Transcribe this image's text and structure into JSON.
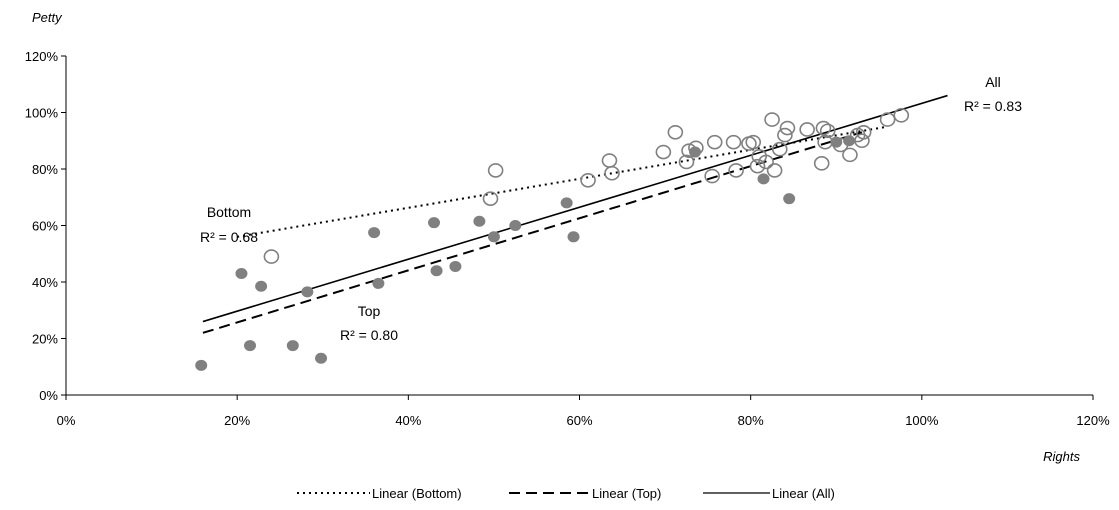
{
  "chart_data": {
    "type": "scatter",
    "xlabel": "Rights",
    "ylabel": "Petty",
    "xlim": [
      0,
      120
    ],
    "ylim": [
      0,
      120
    ],
    "xticks": [
      "0%",
      "20%",
      "40%",
      "60%",
      "80%",
      "100%",
      "120%"
    ],
    "yticks": [
      "0%",
      "20%",
      "40%",
      "60%",
      "80%",
      "100%",
      "120%"
    ],
    "grid": false,
    "legend_position": "bottom",
    "series": [
      {
        "name": "Bottom",
        "marker": "open-circle",
        "color": "#808080",
        "points": [
          [
            24,
            49
          ],
          [
            49.6,
            69.5
          ],
          [
            50.2,
            79.5
          ],
          [
            61,
            76
          ],
          [
            63.5,
            83
          ],
          [
            63.8,
            78.5
          ],
          [
            69.8,
            86
          ],
          [
            71.2,
            93
          ],
          [
            72.5,
            82.5
          ],
          [
            72.8,
            86.5
          ],
          [
            73.6,
            87.5
          ],
          [
            75.5,
            77.5
          ],
          [
            75.8,
            89.5
          ],
          [
            78,
            89.5
          ],
          [
            78.3,
            79.5
          ],
          [
            79.8,
            89
          ],
          [
            80.3,
            89.5
          ],
          [
            80.8,
            81
          ],
          [
            81,
            84.5
          ],
          [
            81.8,
            82.5
          ],
          [
            82.5,
            97.5
          ],
          [
            82.8,
            79.5
          ],
          [
            83.4,
            87
          ],
          [
            84,
            92
          ],
          [
            84.3,
            94.5
          ],
          [
            86.6,
            94
          ],
          [
            88.3,
            82
          ],
          [
            88.5,
            94.5
          ],
          [
            88.7,
            89.5
          ],
          [
            89,
            93.5
          ],
          [
            90.5,
            88.5
          ],
          [
            91.6,
            85
          ],
          [
            92.5,
            92
          ],
          [
            93,
            90
          ],
          [
            93.2,
            93
          ],
          [
            96,
            97.5
          ],
          [
            97.6,
            99
          ]
        ]
      },
      {
        "name": "Top",
        "marker": "filled-circle",
        "color": "#808080",
        "points": [
          [
            15.8,
            10.5
          ],
          [
            20.5,
            43
          ],
          [
            21.5,
            17.5
          ],
          [
            22.8,
            38.5
          ],
          [
            26.5,
            17.5
          ],
          [
            28.2,
            36.5
          ],
          [
            29.8,
            13
          ],
          [
            36,
            57.5
          ],
          [
            36.5,
            39.5
          ],
          [
            43,
            61
          ],
          [
            43.3,
            44
          ],
          [
            45.5,
            45.5
          ],
          [
            48.3,
            61.5
          ],
          [
            50,
            56
          ],
          [
            52.5,
            60
          ],
          [
            58.5,
            68
          ],
          [
            59.3,
            56
          ],
          [
            73.5,
            86
          ],
          [
            81.5,
            76.5
          ],
          [
            84.5,
            69.5
          ],
          [
            90,
            89.5
          ],
          [
            91.5,
            90
          ]
        ]
      }
    ],
    "trendlines": [
      {
        "name": "Linear (Bottom)",
        "style": "dotted",
        "x": [
          20,
          96
        ],
        "y": [
          56,
          95
        ],
        "r2_label": "R² = 0.68",
        "group_label": "Bottom"
      },
      {
        "name": "Linear (Top)",
        "style": "dashed",
        "x": [
          16,
          93
        ],
        "y": [
          22,
          93
        ],
        "r2_label": "R² = 0.80",
        "group_label": "Top"
      },
      {
        "name": "Linear (All)",
        "style": "solid",
        "x": [
          16,
          103
        ],
        "y": [
          26,
          106
        ],
        "r2_label": "R² = 0.83",
        "group_label": "All"
      }
    ]
  }
}
